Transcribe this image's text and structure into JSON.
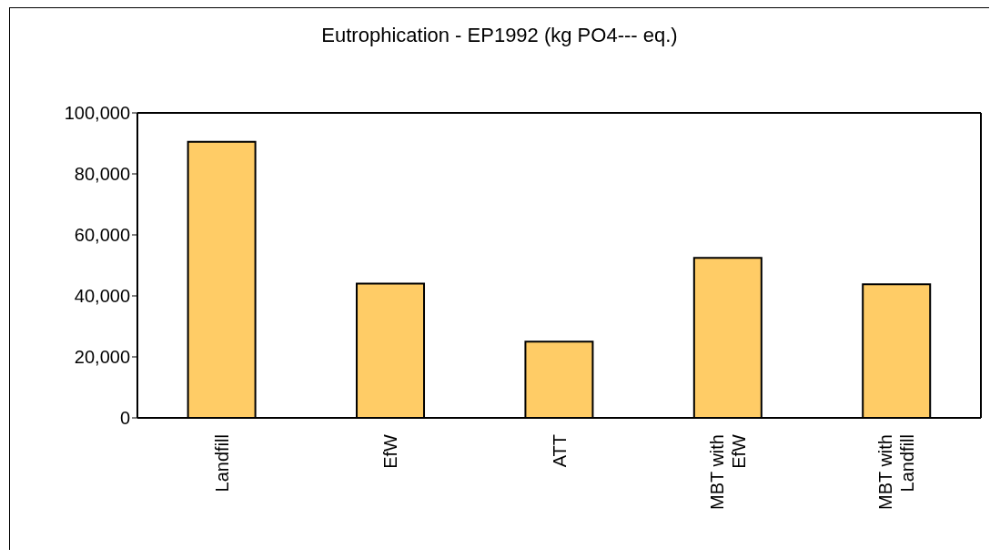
{
  "chart_data": {
    "type": "bar",
    "title": "Eutrophication - EP1992 (kg PO4--- eq.)",
    "categories": [
      "Landfill",
      "EfW",
      "ATT",
      "MBT with EfW",
      "MBT with Landfill"
    ],
    "values": [
      90500,
      44000,
      25000,
      52500,
      43800
    ],
    "color": "#ffcc66",
    "ylim": [
      0,
      100000
    ],
    "yticks": [
      {
        "value": 0,
        "label": "0"
      },
      {
        "value": 20000,
        "label": "20,000"
      },
      {
        "value": 40000,
        "label": "40,000"
      },
      {
        "value": 60000,
        "label": "60,000"
      },
      {
        "value": 80000,
        "label": "80,000"
      },
      {
        "value": 100000,
        "label": "100,000"
      }
    ],
    "grid": false,
    "legend": false
  }
}
